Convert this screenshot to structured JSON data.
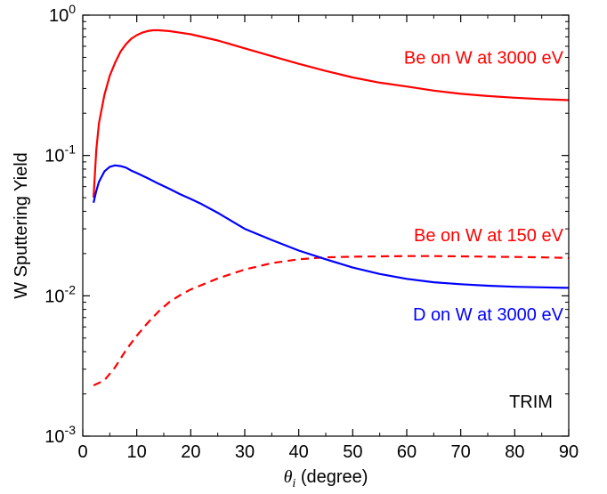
{
  "chart_data": {
    "type": "line",
    "title": "",
    "xlabel": {
      "symbol": "θ",
      "subscript": "i",
      "unit": " (degree)"
    },
    "ylabel": "W Sputtering Yield",
    "xlim": [
      0,
      90
    ],
    "ylim": [
      0.001,
      1
    ],
    "yscale": "log",
    "xticks": [
      0,
      10,
      20,
      30,
      40,
      50,
      60,
      70,
      80,
      90
    ],
    "yticks": [
      {
        "value": 0.001,
        "base": "10",
        "exp": "-3"
      },
      {
        "value": 0.01,
        "base": "10",
        "exp": "-2"
      },
      {
        "value": 0.1,
        "base": "10",
        "exp": "-1"
      },
      {
        "value": 1,
        "base": "10",
        "exp": "0"
      }
    ],
    "grid": false,
    "annotations": [
      {
        "text": "TRIM",
        "x": 83,
        "y": 0.0016,
        "color": "#000000",
        "anchor": "middle"
      }
    ],
    "series": [
      {
        "name": "Be on W at 3000 eV",
        "color": "#ff0000",
        "dash": "solid",
        "label": {
          "x": 89,
          "y": 0.45,
          "anchor": "end"
        },
        "x": [
          2,
          2.5,
          3,
          4,
          5,
          6,
          7,
          8,
          9,
          10,
          11,
          12,
          13,
          14,
          16,
          18,
          20,
          25,
          30,
          35,
          40,
          45,
          50,
          55,
          60,
          65,
          70,
          75,
          80,
          85,
          90
        ],
        "y": [
          0.05,
          0.11,
          0.17,
          0.27,
          0.37,
          0.46,
          0.55,
          0.62,
          0.68,
          0.72,
          0.75,
          0.77,
          0.78,
          0.78,
          0.77,
          0.75,
          0.73,
          0.66,
          0.58,
          0.51,
          0.45,
          0.4,
          0.36,
          0.33,
          0.31,
          0.29,
          0.275,
          0.265,
          0.258,
          0.252,
          0.248
        ]
      },
      {
        "name": "Be on W at 150 eV",
        "color": "#ff0000",
        "dash": "dashed",
        "label": {
          "x": 89,
          "y": 0.0245,
          "anchor": "end"
        },
        "x": [
          2,
          4,
          6,
          8,
          10,
          12,
          14,
          16,
          18,
          20,
          25,
          30,
          35,
          40,
          45,
          50,
          55,
          60,
          65,
          70,
          75,
          80,
          85,
          90
        ],
        "y": [
          0.0023,
          0.0025,
          0.0031,
          0.0041,
          0.0052,
          0.0064,
          0.0077,
          0.009,
          0.0101,
          0.0111,
          0.0133,
          0.0154,
          0.0171,
          0.0182,
          0.0188,
          0.019,
          0.0191,
          0.0192,
          0.0192,
          0.0191,
          0.019,
          0.0189,
          0.0188,
          0.0186
        ]
      },
      {
        "name": "D on W at 3000 eV",
        "color": "#0000ff",
        "dash": "solid",
        "label": {
          "x": 89,
          "y": 0.0067,
          "anchor": "end"
        },
        "x": [
          2,
          2.5,
          3,
          4,
          5,
          6,
          7,
          8,
          9,
          10,
          12,
          14,
          16,
          18,
          20,
          22,
          25,
          30,
          35,
          40,
          45,
          50,
          55,
          60,
          65,
          70,
          75,
          80,
          85,
          90
        ],
        "y": [
          0.046,
          0.056,
          0.065,
          0.077,
          0.083,
          0.085,
          0.084,
          0.082,
          0.078,
          0.075,
          0.069,
          0.063,
          0.058,
          0.053,
          0.049,
          0.045,
          0.039,
          0.03,
          0.025,
          0.021,
          0.0182,
          0.0159,
          0.0143,
          0.0132,
          0.0125,
          0.0121,
          0.0118,
          0.0116,
          0.0115,
          0.0114
        ]
      }
    ]
  }
}
